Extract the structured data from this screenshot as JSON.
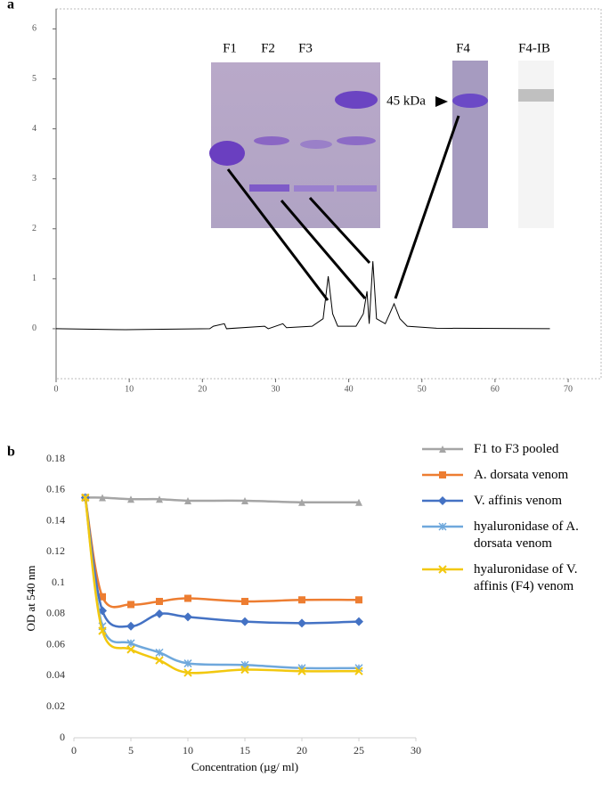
{
  "chart_data": [
    {
      "type": "line",
      "panel_label": "a",
      "annotations": [
        "F1",
        "F2",
        "F3",
        "F4",
        "F4-IB",
        "45 kDa"
      ],
      "x": [
        0,
        9.5,
        21,
        21.5,
        23,
        23.3,
        28.5,
        29,
        31,
        31.5,
        35,
        36.5,
        37.2,
        37.8,
        38.5,
        41,
        42,
        42.5,
        42.8,
        43.3,
        43.8,
        45,
        46.2,
        47,
        48,
        52,
        67.5
      ],
      "values": [
        0,
        -0.02,
        0,
        0.05,
        0.1,
        0,
        0.05,
        0,
        0.1,
        0.02,
        0.05,
        0.2,
        1.05,
        0.3,
        0.05,
        0.05,
        0.3,
        0.75,
        0.1,
        1.35,
        0.2,
        0.1,
        0.5,
        0.2,
        0.05,
        0.01,
        0
      ],
      "color": "#000000",
      "xlim": [
        0,
        74.5
      ],
      "xticks": [
        0,
        10,
        20,
        30,
        40,
        50,
        60,
        70
      ],
      "ylim": [
        -1,
        6.4
      ],
      "yticks": [
        0,
        1,
        2,
        3,
        4,
        5,
        6
      ]
    },
    {
      "type": "line",
      "panel_label": "b",
      "x_label": "Concentration (µg/ ml)",
      "y_label": "OD at 540 nm",
      "x": [
        1,
        2.5,
        5,
        7.5,
        10,
        15,
        20,
        25
      ],
      "series": [
        {
          "name": "F1 to F3 pooled",
          "color": "#a5a5a5",
          "marker": "triangle",
          "values": [
            0.155,
            0.155,
            0.154,
            0.154,
            0.153,
            0.153,
            0.152,
            0.152
          ]
        },
        {
          "name": "A. dorsata venom",
          "color": "#ed7d31",
          "marker": "square",
          "values": [
            0.155,
            0.091,
            0.086,
            0.088,
            0.09,
            0.088,
            0.089,
            0.089
          ]
        },
        {
          "name": "V. affinis venom",
          "color": "#4472c4",
          "marker": "diamond",
          "values": [
            0.155,
            0.082,
            0.072,
            0.08,
            0.078,
            0.075,
            0.074,
            0.075
          ]
        },
        {
          "name": "hyaluronidase of A. dorsata venom",
          "color": "#6fa8dc",
          "marker": "star",
          "values": [
            0.155,
            0.072,
            0.061,
            0.055,
            0.048,
            0.047,
            0.045,
            0.045
          ]
        },
        {
          "name": "hyaluronidase of V. affinis (F4) venom",
          "color": "#f2c80f",
          "marker": "cross",
          "values": [
            0.155,
            0.069,
            0.057,
            0.05,
            0.042,
            0.044,
            0.043,
            0.043
          ]
        }
      ],
      "xlim": [
        0,
        30
      ],
      "xticks": [
        0,
        5,
        10,
        15,
        20,
        25,
        30
      ],
      "ylim": [
        0,
        0.18
      ],
      "yticks": [
        0,
        0.02,
        0.04,
        0.06,
        0.08,
        0.1,
        0.12,
        0.14,
        0.16,
        0.18
      ]
    }
  ]
}
